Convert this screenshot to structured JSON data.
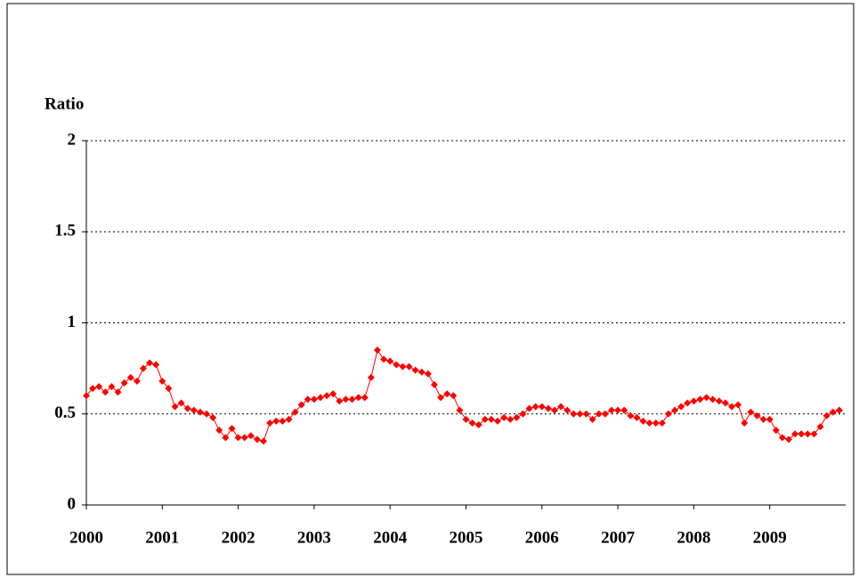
{
  "chart_data": {
    "type": "line",
    "y_label": "Ratio",
    "categories": [
      "2000",
      null,
      null,
      null,
      null,
      null,
      null,
      null,
      null,
      null,
      null,
      null,
      "2001",
      null,
      null,
      null,
      null,
      null,
      null,
      null,
      null,
      null,
      null,
      null,
      "2002",
      null,
      null,
      null,
      null,
      null,
      null,
      null,
      null,
      null,
      null,
      null,
      "2003",
      null,
      null,
      null,
      null,
      null,
      null,
      null,
      null,
      null,
      null,
      null,
      "2004",
      null,
      null,
      null,
      null,
      null,
      null,
      null,
      null,
      null,
      null,
      null,
      "2005",
      null,
      null,
      null,
      null,
      null,
      null,
      null,
      null,
      null,
      null,
      null,
      "2006",
      null,
      null,
      null,
      null,
      null,
      null,
      null,
      null,
      null,
      null,
      null,
      "2007",
      null,
      null,
      null,
      null,
      null,
      null,
      null,
      null,
      null,
      null,
      null,
      "2008",
      null,
      null,
      null,
      null,
      null,
      null,
      null,
      null,
      null,
      null,
      null,
      "2009",
      null,
      null,
      null,
      null,
      null,
      null,
      null,
      null,
      null,
      null,
      null
    ],
    "values": [
      0.6,
      0.64,
      0.65,
      0.62,
      0.65,
      0.62,
      0.67,
      0.7,
      0.68,
      0.75,
      0.78,
      0.77,
      0.68,
      0.64,
      0.54,
      0.56,
      0.53,
      0.52,
      0.51,
      0.5,
      0.48,
      0.41,
      0.37,
      0.42,
      0.37,
      0.37,
      0.38,
      0.36,
      0.35,
      0.45,
      0.46,
      0.46,
      0.47,
      0.51,
      0.55,
      0.58,
      0.58,
      0.59,
      0.6,
      0.61,
      0.57,
      0.58,
      0.58,
      0.59,
      0.59,
      0.7,
      0.85,
      0.8,
      0.79,
      0.77,
      0.76,
      0.76,
      0.74,
      0.73,
      0.72,
      0.66,
      0.59,
      0.61,
      0.6,
      0.52,
      0.47,
      0.45,
      0.44,
      0.47,
      0.47,
      0.46,
      0.48,
      0.47,
      0.48,
      0.5,
      0.53,
      0.54,
      0.54,
      0.53,
      0.52,
      0.54,
      0.52,
      0.5,
      0.5,
      0.5,
      0.47,
      0.5,
      0.5,
      0.52,
      0.52,
      0.52,
      0.49,
      0.48,
      0.46,
      0.45,
      0.45,
      0.45,
      0.5,
      0.52,
      0.54,
      0.56,
      0.57,
      0.58,
      0.59,
      0.58,
      0.57,
      0.56,
      0.54,
      0.55,
      0.45,
      0.51,
      0.49,
      0.47,
      0.47,
      0.41,
      0.37,
      0.36,
      0.39,
      0.39,
      0.39,
      0.39,
      0.43,
      0.49,
      0.51,
      0.52
    ],
    "color": "#ff0000",
    "ylim": [
      0,
      2
    ],
    "yticks": [
      0,
      0.5,
      1,
      1.5,
      2
    ],
    "grid": true
  }
}
